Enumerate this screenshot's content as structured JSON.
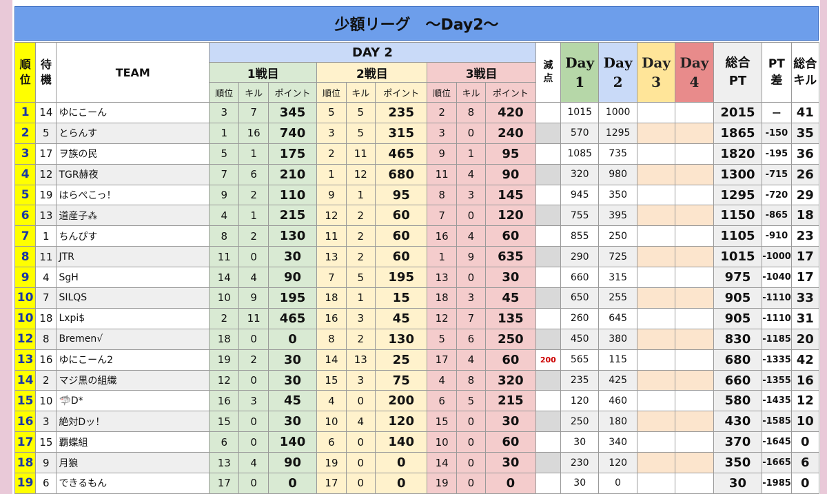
{
  "title": "少額リーグ　〜Day2〜",
  "headers": {
    "rank": "順\n位",
    "wait": "待\n機",
    "team": "TEAM",
    "day": "DAY 2",
    "game1": "1戦目",
    "game2": "2戦目",
    "game3": "3戦目",
    "sub_rank": "順位",
    "sub_kill": "キル",
    "sub_point": "ポイント",
    "penalty": "減\n点",
    "day1": "Day\n1",
    "day2": "Day\n2",
    "day3": "Day\n3",
    "day4": "Day\n4",
    "total_pt": "総合\nPT",
    "pt_diff": "PT\n差",
    "total_kill": "総合\nキル"
  },
  "rows": [
    {
      "rank": "1",
      "wait": "14",
      "team": "ゆにこーん",
      "g1": [
        "3",
        "7",
        "345"
      ],
      "g2": [
        "5",
        "5",
        "235"
      ],
      "g3": [
        "2",
        "8",
        "420"
      ],
      "pen": "",
      "d1": "1015",
      "d2": "1000",
      "d3": "",
      "d4": "",
      "total": "2015",
      "diff": "ー",
      "kills": "41"
    },
    {
      "rank": "2",
      "wait": "5",
      "team": "とらんす",
      "g1": [
        "1",
        "16",
        "740"
      ],
      "g2": [
        "3",
        "5",
        "315"
      ],
      "g3": [
        "3",
        "0",
        "240"
      ],
      "pen": "",
      "d1": "570",
      "d2": "1295",
      "d3": "",
      "d4": "",
      "total": "1865",
      "diff": "-150",
      "kills": "35"
    },
    {
      "rank": "3",
      "wait": "17",
      "team": "ヲ族の民",
      "g1": [
        "5",
        "1",
        "175"
      ],
      "g2": [
        "2",
        "11",
        "465"
      ],
      "g3": [
        "9",
        "1",
        "95"
      ],
      "pen": "",
      "d1": "1085",
      "d2": "735",
      "d3": "",
      "d4": "",
      "total": "1820",
      "diff": "-195",
      "kills": "36"
    },
    {
      "rank": "4",
      "wait": "12",
      "team": "TGR赫夜",
      "g1": [
        "7",
        "6",
        "210"
      ],
      "g2": [
        "1",
        "12",
        "680"
      ],
      "g3": [
        "11",
        "4",
        "90"
      ],
      "pen": "",
      "d1": "320",
      "d2": "980",
      "d3": "",
      "d4": "",
      "total": "1300",
      "diff": "-715",
      "kills": "26"
    },
    {
      "rank": "5",
      "wait": "19",
      "team": "はらぺこっ！",
      "g1": [
        "9",
        "2",
        "110"
      ],
      "g2": [
        "9",
        "1",
        "95"
      ],
      "g3": [
        "8",
        "3",
        "145"
      ],
      "pen": "",
      "d1": "945",
      "d2": "350",
      "d3": "",
      "d4": "",
      "total": "1295",
      "diff": "-720",
      "kills": "29"
    },
    {
      "rank": "6",
      "wait": "13",
      "team": "道産子⁂",
      "g1": [
        "4",
        "1",
        "215"
      ],
      "g2": [
        "12",
        "2",
        "60"
      ],
      "g3": [
        "7",
        "0",
        "120"
      ],
      "pen": "",
      "d1": "755",
      "d2": "395",
      "d3": "",
      "d4": "",
      "total": "1150",
      "diff": "-865",
      "kills": "18"
    },
    {
      "rank": "7",
      "wait": "1",
      "team": "ちんぴす",
      "g1": [
        "8",
        "2",
        "130"
      ],
      "g2": [
        "11",
        "2",
        "60"
      ],
      "g3": [
        "16",
        "4",
        "60"
      ],
      "pen": "",
      "d1": "855",
      "d2": "250",
      "d3": "",
      "d4": "",
      "total": "1105",
      "diff": "-910",
      "kills": "23"
    },
    {
      "rank": "8",
      "wait": "11",
      "team": "JTR",
      "g1": [
        "11",
        "0",
        "30"
      ],
      "g2": [
        "13",
        "2",
        "60"
      ],
      "g3": [
        "1",
        "9",
        "635"
      ],
      "pen": "",
      "d1": "290",
      "d2": "725",
      "d3": "",
      "d4": "",
      "total": "1015",
      "diff": "-1000",
      "kills": "17"
    },
    {
      "rank": "9",
      "wait": "4",
      "team": "SgH",
      "g1": [
        "14",
        "4",
        "90"
      ],
      "g2": [
        "7",
        "5",
        "195"
      ],
      "g3": [
        "13",
        "0",
        "30"
      ],
      "pen": "",
      "d1": "660",
      "d2": "315",
      "d3": "",
      "d4": "",
      "total": "975",
      "diff": "-1040",
      "kills": "17"
    },
    {
      "rank": "10",
      "wait": "7",
      "team": "SILQS",
      "g1": [
        "10",
        "9",
        "195"
      ],
      "g2": [
        "18",
        "1",
        "15"
      ],
      "g3": [
        "18",
        "3",
        "45"
      ],
      "pen": "",
      "d1": "650",
      "d2": "255",
      "d3": "",
      "d4": "",
      "total": "905",
      "diff": "-1110",
      "kills": "33"
    },
    {
      "rank": "10",
      "wait": "18",
      "team": "Lxpi$",
      "g1": [
        "2",
        "11",
        "465"
      ],
      "g2": [
        "16",
        "3",
        "45"
      ],
      "g3": [
        "12",
        "7",
        "135"
      ],
      "pen": "",
      "d1": "260",
      "d2": "645",
      "d3": "",
      "d4": "",
      "total": "905",
      "diff": "-1110",
      "kills": "31"
    },
    {
      "rank": "12",
      "wait": "8",
      "team": "Bremen√",
      "g1": [
        "18",
        "0",
        "0"
      ],
      "g2": [
        "8",
        "2",
        "130"
      ],
      "g3": [
        "5",
        "6",
        "250"
      ],
      "pen": "",
      "d1": "450",
      "d2": "380",
      "d3": "",
      "d4": "",
      "total": "830",
      "diff": "-1185",
      "kills": "20"
    },
    {
      "rank": "13",
      "wait": "16",
      "team": "ゆにこーん2",
      "g1": [
        "19",
        "2",
        "30"
      ],
      "g2": [
        "14",
        "13",
        "25"
      ],
      "g3": [
        "17",
        "4",
        "60"
      ],
      "pen": "200",
      "d1": "565",
      "d2": "115",
      "d3": "",
      "d4": "",
      "total": "680",
      "diff": "-1335",
      "kills": "42"
    },
    {
      "rank": "14",
      "wait": "2",
      "team": "マジ黒の組織",
      "g1": [
        "12",
        "0",
        "30"
      ],
      "g2": [
        "15",
        "3",
        "75"
      ],
      "g3": [
        "4",
        "8",
        "320"
      ],
      "pen": "",
      "d1": "235",
      "d2": "425",
      "d3": "",
      "d4": "",
      "total": "660",
      "diff": "-1355",
      "kills": "16"
    },
    {
      "rank": "15",
      "wait": "10",
      "team": "🦈D*",
      "g1": [
        "16",
        "3",
        "45"
      ],
      "g2": [
        "4",
        "0",
        "200"
      ],
      "g3": [
        "6",
        "5",
        "215"
      ],
      "pen": "",
      "d1": "120",
      "d2": "460",
      "d3": "",
      "d4": "",
      "total": "580",
      "diff": "-1435",
      "kills": "12"
    },
    {
      "rank": "16",
      "wait": "3",
      "team": "絶対Dッ！",
      "g1": [
        "15",
        "0",
        "30"
      ],
      "g2": [
        "10",
        "4",
        "120"
      ],
      "g3": [
        "15",
        "0",
        "30"
      ],
      "pen": "",
      "d1": "250",
      "d2": "180",
      "d3": "",
      "d4": "",
      "total": "430",
      "diff": "-1585",
      "kills": "10"
    },
    {
      "rank": "17",
      "wait": "15",
      "team": "覇蝶組",
      "g1": [
        "6",
        "0",
        "140"
      ],
      "g2": [
        "6",
        "0",
        "140"
      ],
      "g3": [
        "10",
        "0",
        "60"
      ],
      "pen": "",
      "d1": "30",
      "d2": "340",
      "d3": "",
      "d4": "",
      "total": "370",
      "diff": "-1645",
      "kills": "0"
    },
    {
      "rank": "18",
      "wait": "9",
      "team": "月狼",
      "g1": [
        "13",
        "4",
        "90"
      ],
      "g2": [
        "19",
        "0",
        "0"
      ],
      "g3": [
        "14",
        "0",
        "30"
      ],
      "pen": "",
      "d1": "230",
      "d2": "120",
      "d3": "",
      "d4": "",
      "total": "350",
      "diff": "-1665",
      "kills": "6"
    },
    {
      "rank": "19",
      "wait": "6",
      "team": "できるもん",
      "g1": [
        "17",
        "0",
        "0"
      ],
      "g2": [
        "17",
        "0",
        "0"
      ],
      "g3": [
        "19",
        "0",
        "0"
      ],
      "pen": "",
      "d1": "30",
      "d2": "0",
      "d3": "",
      "d4": "",
      "total": "30",
      "diff": "-1985",
      "kills": "0"
    }
  ]
}
